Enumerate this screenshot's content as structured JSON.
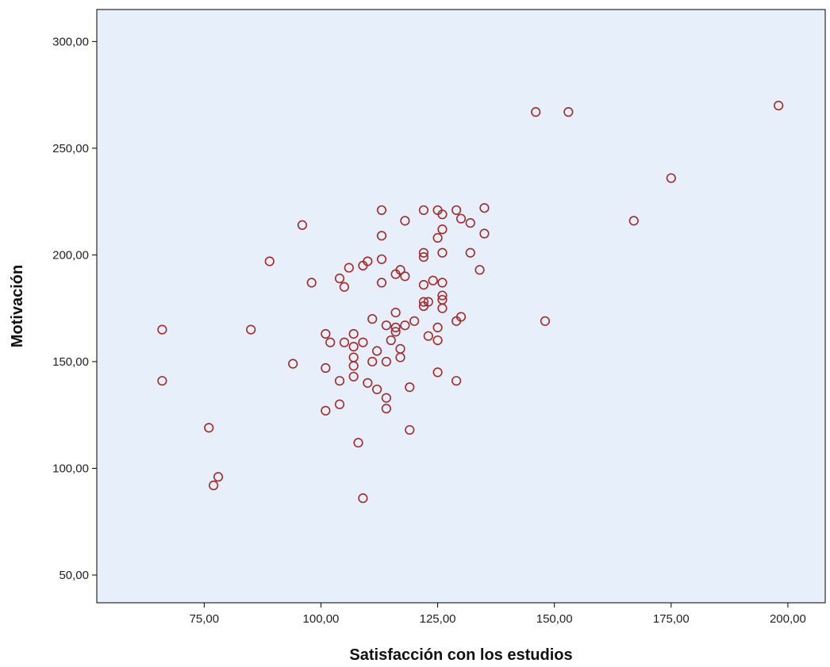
{
  "chart_data": {
    "type": "scatter",
    "title": "",
    "xlabel": "Satisfacción con los estudios",
    "ylabel": "Motivación",
    "xlim": [
      52,
      208
    ],
    "ylim": [
      37,
      315
    ],
    "x_ticks": [
      {
        "value": 75,
        "label": "75,00"
      },
      {
        "value": 100,
        "label": "100,00"
      },
      {
        "value": 125,
        "label": "125,00"
      },
      {
        "value": 150,
        "label": "150,00"
      },
      {
        "value": 175,
        "label": "175,00"
      },
      {
        "value": 200,
        "label": "200,00"
      }
    ],
    "y_ticks": [
      {
        "value": 50,
        "label": "50,00"
      },
      {
        "value": 100,
        "label": "100,00"
      },
      {
        "value": 150,
        "label": "150,00"
      },
      {
        "value": 200,
        "label": "200,00"
      },
      {
        "value": 250,
        "label": "250,00"
      },
      {
        "value": 300,
        "label": "300,00"
      }
    ],
    "grid": false,
    "legend": "none",
    "colors": {
      "plot_background": "#E6EFFA",
      "marker_stroke": "#A52A2A",
      "axis": "#000000"
    },
    "points": [
      [
        66,
        165
      ],
      [
        66,
        141
      ],
      [
        76,
        119
      ],
      [
        77,
        92
      ],
      [
        78,
        96
      ],
      [
        85,
        165
      ],
      [
        89,
        197
      ],
      [
        94,
        149
      ],
      [
        96,
        214
      ],
      [
        98,
        187
      ],
      [
        101,
        163
      ],
      [
        101,
        147
      ],
      [
        101,
        127
      ],
      [
        102,
        159
      ],
      [
        104,
        189
      ],
      [
        104,
        141
      ],
      [
        104,
        130
      ],
      [
        105,
        185
      ],
      [
        105,
        159
      ],
      [
        106,
        194
      ],
      [
        107,
        163
      ],
      [
        107,
        157
      ],
      [
        107,
        152
      ],
      [
        107,
        148
      ],
      [
        107,
        143
      ],
      [
        108,
        112
      ],
      [
        109,
        195
      ],
      [
        109,
        159
      ],
      [
        109,
        86
      ],
      [
        110,
        197
      ],
      [
        110,
        140
      ],
      [
        111,
        170
      ],
      [
        111,
        150
      ],
      [
        112,
        155
      ],
      [
        112,
        137
      ],
      [
        113,
        221
      ],
      [
        113,
        209
      ],
      [
        113,
        198
      ],
      [
        113,
        187
      ],
      [
        114,
        167
      ],
      [
        114,
        150
      ],
      [
        114,
        133
      ],
      [
        114,
        128
      ],
      [
        115,
        160
      ],
      [
        116,
        191
      ],
      [
        116,
        173
      ],
      [
        116,
        166
      ],
      [
        116,
        164
      ],
      [
        117,
        193
      ],
      [
        117,
        156
      ],
      [
        117,
        152
      ],
      [
        118,
        216
      ],
      [
        118,
        190
      ],
      [
        118,
        167
      ],
      [
        119,
        138
      ],
      [
        119,
        118
      ],
      [
        120,
        169
      ],
      [
        122,
        221
      ],
      [
        122,
        201
      ],
      [
        122,
        199
      ],
      [
        122,
        186
      ],
      [
        122,
        178
      ],
      [
        122,
        176
      ],
      [
        123,
        178
      ],
      [
        123,
        162
      ],
      [
        124,
        188
      ],
      [
        125,
        221
      ],
      [
        125,
        208
      ],
      [
        125,
        166
      ],
      [
        125,
        160
      ],
      [
        125,
        145
      ],
      [
        126,
        219
      ],
      [
        126,
        212
      ],
      [
        126,
        201
      ],
      [
        126,
        187
      ],
      [
        126,
        181
      ],
      [
        126,
        179
      ],
      [
        126,
        175
      ],
      [
        129,
        221
      ],
      [
        129,
        169
      ],
      [
        129,
        141
      ],
      [
        130,
        217
      ],
      [
        130,
        171
      ],
      [
        132,
        215
      ],
      [
        132,
        201
      ],
      [
        134,
        193
      ],
      [
        135,
        222
      ],
      [
        135,
        210
      ],
      [
        146,
        267
      ],
      [
        148,
        169
      ],
      [
        153,
        267
      ],
      [
        167,
        216
      ],
      [
        175,
        236
      ],
      [
        198,
        270
      ]
    ]
  }
}
